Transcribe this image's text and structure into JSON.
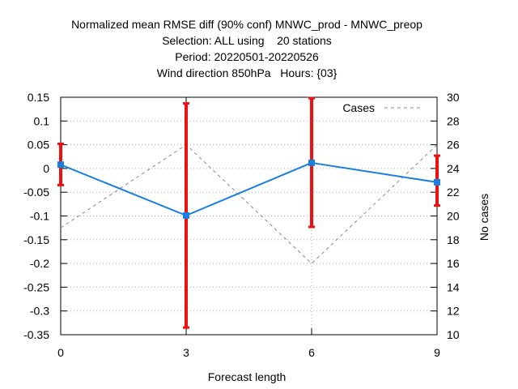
{
  "chart_data": {
    "type": "line",
    "title_lines": [
      "Normalized mean RMSE diff (90% conf) MNWC_prod - MNWC_preop",
      "Selection: ALL using    20 stations",
      "Period: 20220501-20220526",
      "Wind direction 850hPa   Hours: {03}"
    ],
    "xlabel": "Forecast length",
    "ylabel": "",
    "y2label": "No cases",
    "x": [
      0,
      3,
      6,
      9
    ],
    "xlim": [
      0,
      9
    ],
    "ylim": [
      -0.35,
      0.15
    ],
    "y2lim": [
      10,
      30
    ],
    "xticks": [
      "0",
      "3",
      "6",
      "9"
    ],
    "yticks": [
      "0.15",
      "0.1",
      "0.05",
      "0",
      "-0.05",
      "-0.1",
      "-0.15",
      "-0.2",
      "-0.25",
      "-0.3",
      "-0.35"
    ],
    "y2ticks": [
      "30",
      "28",
      "26",
      "24",
      "22",
      "20",
      "18",
      "16",
      "14",
      "12",
      "10"
    ],
    "grid": true,
    "legend_position": "top-right",
    "series": [
      {
        "values": [
          0.008,
          -0.099,
          0.012,
          -0.029
        ],
        "err_low": [
          -0.035,
          -0.335,
          -0.123,
          -0.078
        ],
        "err_high": [
          0.052,
          0.137,
          0.148,
          0.027
        ],
        "color": "#1a80e0",
        "error_color": "#ee1111",
        "axis": "left"
      },
      {
        "name": "Cases",
        "values": [
          19,
          26,
          16,
          26
        ],
        "color": "#888888",
        "dash": true,
        "axis": "right"
      }
    ]
  }
}
